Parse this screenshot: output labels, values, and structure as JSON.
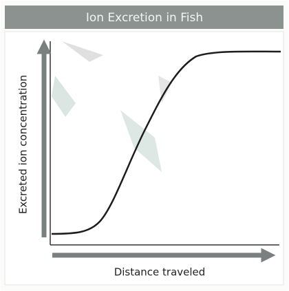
{
  "title": "Ion Excretion in Fish",
  "y_axis_label": "Excreted ion concentration",
  "x_axis_label": "Distance traveled"
}
